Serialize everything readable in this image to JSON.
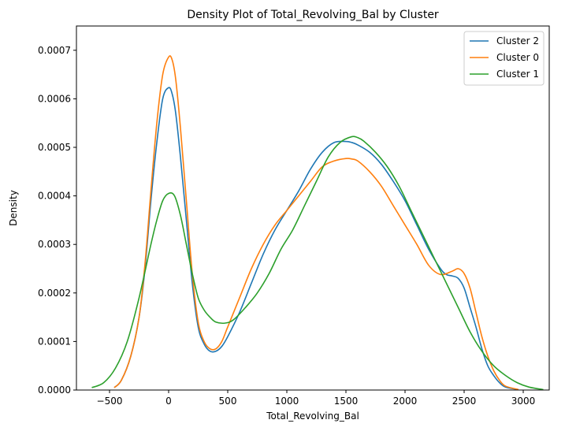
{
  "chart_data": {
    "type": "line",
    "title": "Density Plot of Total_Revolving_Bal by Cluster",
    "xlabel": "Total_Revolving_Bal",
    "ylabel": "Density",
    "xlim": [
      -780,
      3220
    ],
    "ylim": [
      0,
      0.00075
    ],
    "xticks": [
      -500,
      0,
      500,
      1000,
      1500,
      2000,
      2500,
      3000
    ],
    "xtick_labels": [
      "−500",
      "0",
      "500",
      "1000",
      "1500",
      "2000",
      "2500",
      "3000"
    ],
    "yticks": [
      0,
      0.0001,
      0.0002,
      0.0003,
      0.0004,
      0.0005,
      0.0006,
      0.0007
    ],
    "ytick_labels": [
      "0.0000",
      "0.0001",
      "0.0002",
      "0.0003",
      "0.0004",
      "0.0005",
      "0.0006",
      "0.0007"
    ],
    "grid": false,
    "legend_position": "top-right",
    "series": [
      {
        "name": "Cluster 2",
        "color": "#1f77b4",
        "points": [
          [
            -460,
            5e-06
          ],
          [
            -400,
            2e-05
          ],
          [
            -320,
            7e-05
          ],
          [
            -250,
            0.00015
          ],
          [
            -200,
            0.00025
          ],
          [
            -150,
            0.00039
          ],
          [
            -100,
            0.00051
          ],
          [
            -50,
            0.0006
          ],
          [
            0,
            0.000623
          ],
          [
            30,
            0.00061
          ],
          [
            60,
            0.00057
          ],
          [
            100,
            0.00048
          ],
          [
            150,
            0.00035
          ],
          [
            200,
            0.00022
          ],
          [
            250,
            0.00013
          ],
          [
            300,
            9.5e-05
          ],
          [
            350,
            8e-05
          ],
          [
            400,
            8e-05
          ],
          [
            450,
            9e-05
          ],
          [
            500,
            0.00011
          ],
          [
            600,
            0.00016
          ],
          [
            700,
            0.00022
          ],
          [
            800,
            0.00028
          ],
          [
            900,
            0.00033
          ],
          [
            1000,
            0.00037
          ],
          [
            1100,
            0.00041
          ],
          [
            1200,
            0.000455
          ],
          [
            1300,
            0.00049
          ],
          [
            1400,
            0.00051
          ],
          [
            1500,
            0.000512
          ],
          [
            1550,
            0.00051
          ],
          [
            1600,
            0.000505
          ],
          [
            1700,
            0.00049
          ],
          [
            1800,
            0.000465
          ],
          [
            1900,
            0.00043
          ],
          [
            2000,
            0.00039
          ],
          [
            2100,
            0.00034
          ],
          [
            2200,
            0.00029
          ],
          [
            2300,
            0.00025
          ],
          [
            2350,
            0.000238
          ],
          [
            2400,
            0.000235
          ],
          [
            2450,
            0.00023
          ],
          [
            2500,
            0.00021
          ],
          [
            2550,
            0.00017
          ],
          [
            2600,
            0.00013
          ],
          [
            2650,
            8.5e-05
          ],
          [
            2700,
            5e-05
          ],
          [
            2750,
            3e-05
          ],
          [
            2800,
            1.5e-05
          ],
          [
            2850,
            6e-06
          ],
          [
            2960,
            1e-06
          ]
        ]
      },
      {
        "name": "Cluster 0",
        "color": "#ff7f0e",
        "points": [
          [
            -460,
            5e-06
          ],
          [
            -400,
            2e-05
          ],
          [
            -320,
            7e-05
          ],
          [
            -250,
            0.00015
          ],
          [
            -200,
            0.00026
          ],
          [
            -150,
            0.00041
          ],
          [
            -100,
            0.00055
          ],
          [
            -50,
            0.00065
          ],
          [
            0,
            0.000686
          ],
          [
            30,
            0.00068
          ],
          [
            60,
            0.00064
          ],
          [
            100,
            0.00054
          ],
          [
            150,
            0.00039
          ],
          [
            200,
            0.00024
          ],
          [
            250,
            0.00014
          ],
          [
            300,
            0.0001
          ],
          [
            350,
            8.5e-05
          ],
          [
            400,
            8.5e-05
          ],
          [
            450,
            0.0001
          ],
          [
            500,
            0.00013
          ],
          [
            600,
            0.00019
          ],
          [
            700,
            0.00025
          ],
          [
            800,
            0.0003
          ],
          [
            900,
            0.00034
          ],
          [
            1000,
            0.00037
          ],
          [
            1100,
            0.0004
          ],
          [
            1200,
            0.00043
          ],
          [
            1300,
            0.00046
          ],
          [
            1400,
            0.000472
          ],
          [
            1500,
            0.000477
          ],
          [
            1550,
            0.000476
          ],
          [
            1600,
            0.000472
          ],
          [
            1700,
            0.00045
          ],
          [
            1800,
            0.00042
          ],
          [
            1900,
            0.00038
          ],
          [
            2000,
            0.00034
          ],
          [
            2100,
            0.0003
          ],
          [
            2200,
            0.000257
          ],
          [
            2300,
            0.000238
          ],
          [
            2400,
            0.000245
          ],
          [
            2450,
            0.00025
          ],
          [
            2500,
            0.00024
          ],
          [
            2550,
            0.00021
          ],
          [
            2600,
            0.00016
          ],
          [
            2650,
            0.00011
          ],
          [
            2700,
            7e-05
          ],
          [
            2750,
            4e-05
          ],
          [
            2800,
            2e-05
          ],
          [
            2850,
            8e-06
          ],
          [
            2960,
            1e-06
          ]
        ]
      },
      {
        "name": "Cluster 1",
        "color": "#2ca02c",
        "points": [
          [
            -650,
            5e-06
          ],
          [
            -550,
            1.5e-05
          ],
          [
            -450,
            4.5e-05
          ],
          [
            -350,
            0.0001
          ],
          [
            -250,
            0.00019
          ],
          [
            -150,
            0.0003
          ],
          [
            -100,
            0.00035
          ],
          [
            -50,
            0.00039
          ],
          [
            0,
            0.000405
          ],
          [
            50,
            0.0004
          ],
          [
            100,
            0.00036
          ],
          [
            150,
            0.0003
          ],
          [
            200,
            0.00024
          ],
          [
            250,
            0.00019
          ],
          [
            300,
            0.000165
          ],
          [
            350,
            0.00015
          ],
          [
            400,
            0.00014
          ],
          [
            480,
            0.000138
          ],
          [
            550,
            0.000145
          ],
          [
            650,
            0.00017
          ],
          [
            750,
            0.0002
          ],
          [
            850,
            0.00024
          ],
          [
            950,
            0.00029
          ],
          [
            1050,
            0.00033
          ],
          [
            1150,
            0.00038
          ],
          [
            1250,
            0.00043
          ],
          [
            1350,
            0.00048
          ],
          [
            1450,
            0.00051
          ],
          [
            1550,
            0.000522
          ],
          [
            1600,
            0.00052
          ],
          [
            1650,
            0.000513
          ],
          [
            1750,
            0.00049
          ],
          [
            1850,
            0.00046
          ],
          [
            1950,
            0.00042
          ],
          [
            2050,
            0.00037
          ],
          [
            2150,
            0.00032
          ],
          [
            2250,
            0.00027
          ],
          [
            2350,
            0.00022
          ],
          [
            2450,
            0.00017
          ],
          [
            2550,
            0.00012
          ],
          [
            2650,
            8e-05
          ],
          [
            2750,
            5e-05
          ],
          [
            2850,
            3e-05
          ],
          [
            2950,
            1.5e-05
          ],
          [
            3050,
            6e-06
          ],
          [
            3170,
            1e-06
          ]
        ]
      }
    ]
  }
}
